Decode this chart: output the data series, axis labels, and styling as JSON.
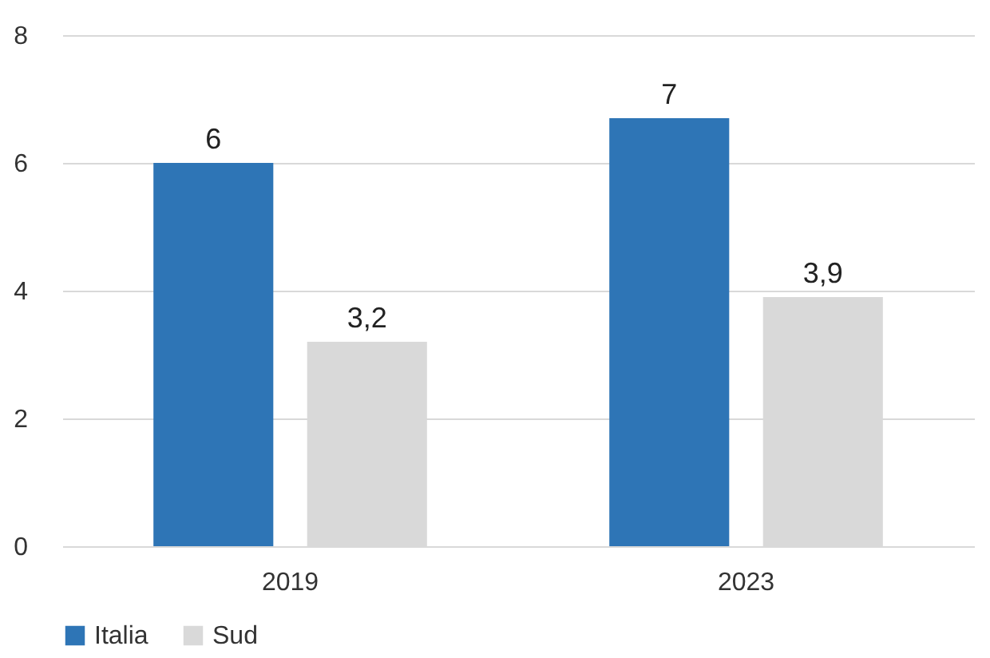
{
  "chart_data": {
    "type": "bar",
    "categories": [
      "2019",
      "2023"
    ],
    "series": [
      {
        "name": "Italia",
        "color": "#2e75b6",
        "values": [
          6,
          6.7
        ],
        "value_labels": [
          "6",
          "7"
        ]
      },
      {
        "name": "Sud",
        "color": "#d9d9d9",
        "values": [
          3.2,
          3.9
        ],
        "value_labels": [
          "3,2",
          "3,9"
        ]
      }
    ],
    "ylim": [
      0,
      8
    ],
    "yticks": [
      0,
      2,
      4,
      6,
      8
    ],
    "grid": "y",
    "legend": "bottom"
  }
}
